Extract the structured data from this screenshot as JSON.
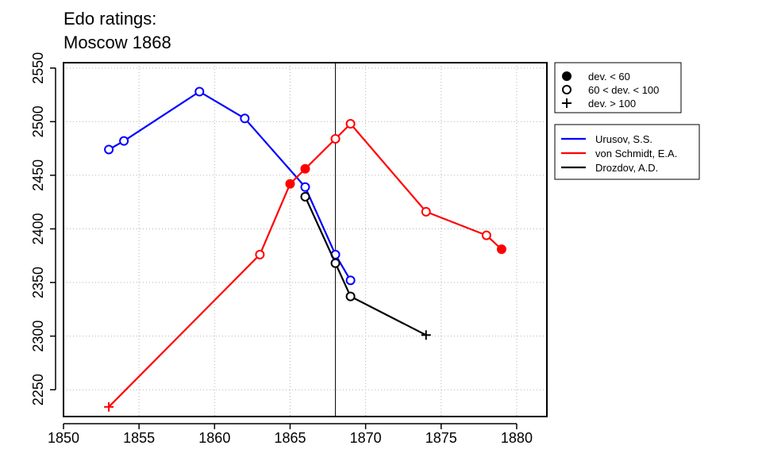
{
  "chart_data": {
    "type": "line",
    "title": [
      "Edo ratings:",
      "Moscow 1868"
    ],
    "xlim": [
      1850,
      1882
    ],
    "ylim": [
      2225,
      2555
    ],
    "x_ticks": [
      1850,
      1855,
      1860,
      1865,
      1870,
      1875,
      1880
    ],
    "y_ticks": [
      2250,
      2300,
      2350,
      2400,
      2450,
      2500,
      2550
    ],
    "grid": true,
    "reference_line_x": 1868,
    "marker_legend": [
      {
        "marker": "filled-circle",
        "label": "dev. < 60"
      },
      {
        "marker": "open-circle",
        "label": "60 < dev. < 100"
      },
      {
        "marker": "plus",
        "label": "dev. > 100"
      }
    ],
    "series": [
      {
        "name": "Urusov, S.S.",
        "color": "#0000ff",
        "points": [
          {
            "x": 1853,
            "y": 2474,
            "marker": "open-circle"
          },
          {
            "x": 1854,
            "y": 2482,
            "marker": "open-circle"
          },
          {
            "x": 1859,
            "y": 2528,
            "marker": "open-circle"
          },
          {
            "x": 1862,
            "y": 2503,
            "marker": "open-circle"
          },
          {
            "x": 1866,
            "y": 2439,
            "marker": "open-circle"
          },
          {
            "x": 1868,
            "y": 2376,
            "marker": "open-circle"
          },
          {
            "x": 1869,
            "y": 2352,
            "marker": "open-circle"
          }
        ]
      },
      {
        "name": "von Schmidt, E.A.",
        "color": "#ff0000",
        "points": [
          {
            "x": 1853,
            "y": 2234,
            "marker": "plus"
          },
          {
            "x": 1863,
            "y": 2376,
            "marker": "open-circle"
          },
          {
            "x": 1865,
            "y": 2442,
            "marker": "filled-circle"
          },
          {
            "x": 1866,
            "y": 2456,
            "marker": "filled-circle"
          },
          {
            "x": 1868,
            "y": 2484,
            "marker": "open-circle"
          },
          {
            "x": 1869,
            "y": 2498,
            "marker": "open-circle"
          },
          {
            "x": 1874,
            "y": 2416,
            "marker": "open-circle"
          },
          {
            "x": 1878,
            "y": 2394,
            "marker": "open-circle"
          },
          {
            "x": 1879,
            "y": 2381,
            "marker": "filled-circle"
          }
        ]
      },
      {
        "name": "Drozdov, A.D.",
        "color": "#000000",
        "points": [
          {
            "x": 1866,
            "y": 2430,
            "marker": "open-circle"
          },
          {
            "x": 1868,
            "y": 2368,
            "marker": "open-circle"
          },
          {
            "x": 1869,
            "y": 2337,
            "marker": "open-circle"
          },
          {
            "x": 1874,
            "y": 2301,
            "marker": "plus"
          }
        ]
      }
    ]
  }
}
